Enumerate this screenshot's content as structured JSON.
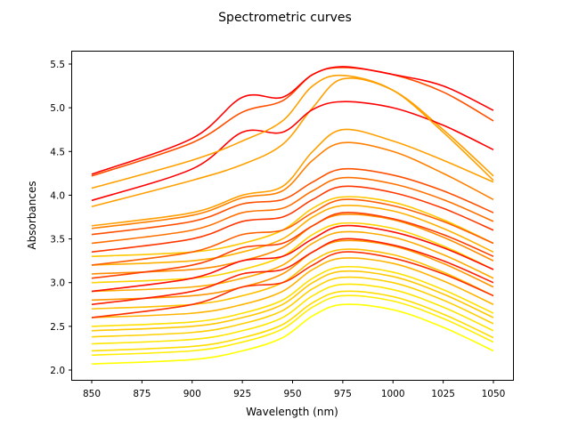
{
  "chart_data": {
    "type": "line",
    "title": "Spectrometric curves",
    "xlabel": "Wavelength (nm)",
    "ylabel": "Absorbances",
    "xlim": [
      841,
      1060
    ],
    "ylim": [
      1.9,
      5.65
    ],
    "xticks": [
      850,
      875,
      900,
      925,
      950,
      975,
      1000,
      1025,
      1050
    ],
    "yticks": [
      2.0,
      2.5,
      3.0,
      3.5,
      4.0,
      4.5,
      5.0,
      5.5
    ],
    "xtick_labels": [
      "850",
      "875",
      "900",
      "925",
      "950",
      "975",
      "1000",
      "1025",
      "1050"
    ],
    "ytick_labels": [
      "2.0",
      "2.5",
      "3.0",
      "3.5",
      "4.0",
      "4.5",
      "5.0",
      "5.5"
    ],
    "grid": false,
    "legend": "none",
    "colormap": "autumn (red to yellow)",
    "x": [
      850,
      900,
      925,
      945,
      960,
      975,
      1000,
      1025,
      1050
    ],
    "series": [
      {
        "color": "#ffff00",
        "values": [
          2.07,
          2.12,
          2.22,
          2.37,
          2.62,
          2.75,
          2.69,
          2.49,
          2.22
        ]
      },
      {
        "color": "#ffee00",
        "values": [
          2.17,
          2.22,
          2.32,
          2.47,
          2.72,
          2.85,
          2.79,
          2.59,
          2.32
        ]
      },
      {
        "color": "#ffdd00",
        "values": [
          2.22,
          2.27,
          2.37,
          2.52,
          2.77,
          2.9,
          2.84,
          2.64,
          2.37
        ]
      },
      {
        "color": "#ffe600",
        "values": [
          2.3,
          2.35,
          2.45,
          2.6,
          2.85,
          2.98,
          2.92,
          2.72,
          2.45
        ]
      },
      {
        "color": "#ffd000",
        "values": [
          2.38,
          2.43,
          2.53,
          2.68,
          2.93,
          3.06,
          3.0,
          2.8,
          2.53
        ]
      },
      {
        "color": "#ffc800",
        "values": [
          2.45,
          2.5,
          2.6,
          2.75,
          3.0,
          3.13,
          3.07,
          2.87,
          2.6
        ]
      },
      {
        "color": "#ffe000",
        "values": [
          2.5,
          2.55,
          2.65,
          2.8,
          3.05,
          3.18,
          3.12,
          2.92,
          2.65
        ]
      },
      {
        "color": "#ffb400",
        "values": [
          2.6,
          2.65,
          2.75,
          2.9,
          3.15,
          3.28,
          3.22,
          3.02,
          2.75
        ]
      },
      {
        "color": "#ffc000",
        "values": [
          2.7,
          2.75,
          2.85,
          3.0,
          3.25,
          3.38,
          3.32,
          3.12,
          2.85
        ]
      },
      {
        "color": "#ff9600",
        "values": [
          2.8,
          2.85,
          2.95,
          3.1,
          3.35,
          3.48,
          3.42,
          3.22,
          2.95
        ]
      },
      {
        "color": "#ffaa00",
        "values": [
          2.9,
          2.95,
          3.05,
          3.2,
          3.45,
          3.58,
          3.52,
          3.32,
          3.05
        ]
      },
      {
        "color": "#ffd200",
        "values": [
          3.0,
          3.05,
          3.15,
          3.3,
          3.55,
          3.68,
          3.62,
          3.42,
          3.15
        ]
      },
      {
        "color": "#ff8c00",
        "values": [
          3.1,
          3.15,
          3.25,
          3.4,
          3.65,
          3.78,
          3.72,
          3.52,
          3.25
        ]
      },
      {
        "color": "#ffb000",
        "values": [
          3.2,
          3.25,
          3.35,
          3.5,
          3.75,
          3.88,
          3.82,
          3.62,
          3.35
        ]
      },
      {
        "color": "#ffc800",
        "values": [
          3.3,
          3.35,
          3.45,
          3.6,
          3.85,
          3.98,
          3.92,
          3.72,
          3.45
        ]
      },
      {
        "color": "#ff3000",
        "values": [
          2.6,
          2.75,
          2.95,
          3.0,
          3.2,
          3.35,
          3.28,
          3.1,
          2.85
        ]
      },
      {
        "color": "#ff2000",
        "values": [
          2.75,
          2.9,
          3.1,
          3.15,
          3.35,
          3.5,
          3.43,
          3.25,
          3.0
        ]
      },
      {
        "color": "#ff1000",
        "values": [
          2.9,
          3.05,
          3.25,
          3.3,
          3.5,
          3.65,
          3.58,
          3.4,
          3.15
        ]
      },
      {
        "color": "#ff4000",
        "values": [
          3.05,
          3.2,
          3.4,
          3.45,
          3.65,
          3.8,
          3.73,
          3.55,
          3.3
        ]
      },
      {
        "color": "#ff6000",
        "values": [
          3.2,
          3.35,
          3.55,
          3.6,
          3.8,
          3.95,
          3.88,
          3.7,
          3.45
        ]
      },
      {
        "color": "#ff3800",
        "values": [
          3.35,
          3.5,
          3.7,
          3.75,
          3.95,
          4.1,
          4.03,
          3.85,
          3.6
        ]
      },
      {
        "color": "#ff7000",
        "values": [
          3.45,
          3.6,
          3.8,
          3.85,
          4.05,
          4.2,
          4.13,
          3.95,
          3.7
        ]
      },
      {
        "color": "#ff5000",
        "values": [
          3.55,
          3.7,
          3.9,
          3.95,
          4.15,
          4.3,
          4.23,
          4.05,
          3.8
        ]
      },
      {
        "color": "#ff8000",
        "values": [
          3.62,
          3.77,
          3.97,
          4.05,
          4.4,
          4.6,
          4.5,
          4.25,
          3.95
        ]
      },
      {
        "color": "#ffa000",
        "values": [
          3.65,
          3.8,
          4.0,
          4.1,
          4.5,
          4.75,
          4.62,
          4.4,
          4.15
        ]
      },
      {
        "color": "#ffa000",
        "values": [
          3.87,
          4.17,
          4.35,
          4.58,
          5.0,
          5.33,
          5.2,
          4.75,
          4.22
        ]
      },
      {
        "color": "#ff0000",
        "values": [
          3.94,
          4.3,
          4.72,
          4.72,
          4.98,
          5.07,
          5.0,
          4.8,
          4.52
        ]
      },
      {
        "color": "#ffa000",
        "values": [
          4.08,
          4.4,
          4.62,
          4.85,
          5.25,
          5.37,
          5.2,
          4.72,
          4.17
        ]
      },
      {
        "color": "#ff5000",
        "values": [
          4.22,
          4.6,
          4.95,
          5.08,
          5.38,
          5.46,
          5.38,
          5.18,
          4.85
        ]
      },
      {
        "color": "#ff0000",
        "values": [
          4.24,
          4.65,
          5.12,
          5.12,
          5.38,
          5.47,
          5.38,
          5.25,
          4.97
        ]
      }
    ]
  }
}
